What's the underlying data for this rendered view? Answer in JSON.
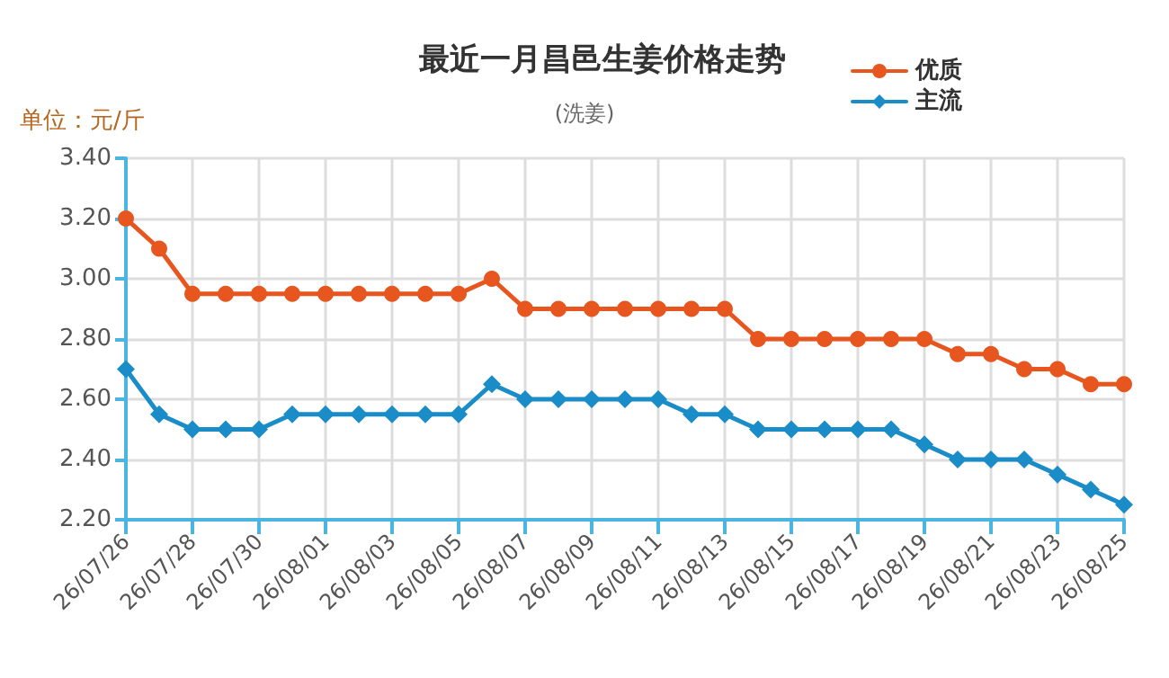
{
  "chart_data": {
    "type": "line",
    "title": "最近一月昌邑生姜价格走势",
    "subtitle": "(洗姜)",
    "annotations": [
      "单位：元/斤"
    ],
    "categories": [
      "26/07/26",
      null,
      "26/07/28",
      null,
      "26/07/30",
      null,
      "26/08/01",
      null,
      "26/08/03",
      null,
      "26/08/05",
      null,
      "26/08/07",
      null,
      "26/08/09",
      null,
      "26/08/11",
      null,
      "26/08/13",
      null,
      "26/08/15",
      null,
      "26/08/17",
      null,
      "26/08/19",
      null,
      "26/08/21",
      null,
      "26/08/23",
      null,
      "26/08/25"
    ],
    "series": [
      {
        "name": "优质",
        "color": "#e8561f",
        "marker": "circle",
        "values": [
          3.2,
          3.1,
          2.95,
          2.95,
          2.95,
          2.95,
          2.95,
          2.95,
          2.95,
          2.95,
          2.95,
          3.0,
          2.9,
          2.9,
          2.9,
          2.9,
          2.9,
          2.9,
          2.9,
          2.8,
          2.8,
          2.8,
          2.8,
          2.8,
          2.8,
          2.75,
          2.75,
          2.7,
          2.7,
          2.65,
          2.65
        ]
      },
      {
        "name": "主流",
        "color": "#1a8cc8",
        "marker": "diamond",
        "values": [
          2.7,
          2.55,
          2.5,
          2.5,
          2.5,
          2.55,
          2.55,
          2.55,
          2.55,
          2.55,
          2.55,
          2.65,
          2.6,
          2.6,
          2.6,
          2.6,
          2.6,
          2.55,
          2.55,
          2.5,
          2.5,
          2.5,
          2.5,
          2.5,
          2.45,
          2.4,
          2.4,
          2.4,
          2.35,
          2.3,
          2.25
        ]
      }
    ],
    "ylim": [
      2.2,
      3.4
    ],
    "yticks": [
      {
        "value": 2.2,
        "label": "2.20"
      },
      {
        "value": 2.4,
        "label": "2.40"
      },
      {
        "value": 2.6,
        "label": "2.60"
      },
      {
        "value": 2.8,
        "label": "2.80"
      },
      {
        "value": 3.0,
        "label": "3.00"
      },
      {
        "value": 3.2,
        "label": "3.20"
      },
      {
        "value": 3.4,
        "label": "3.40"
      }
    ],
    "grid": true,
    "legend": "top right",
    "line_style": "solid"
  }
}
